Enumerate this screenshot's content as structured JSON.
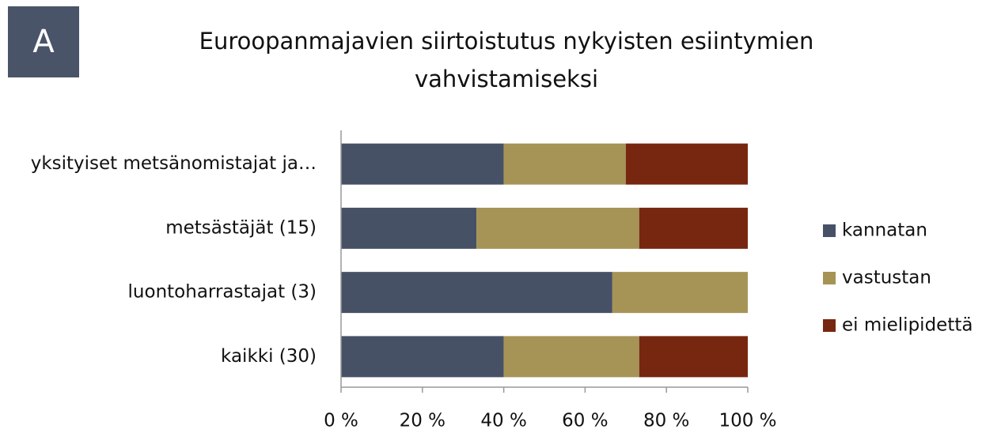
{
  "chart_data": {
    "type": "stacked_bar_horizontal",
    "panel_label": "A",
    "title": "Euroopanmajavien siirtoistutus nykyisten esiintymien vahvistamiseksi",
    "categories": [
      "yksityiset metsänomistajat ja…",
      "metsästäjät (15)",
      "luontoharrastajat (3)",
      "kaikki (30)"
    ],
    "series": [
      {
        "name": "kannatan",
        "color": "#475166",
        "values": [
          40,
          33.3,
          66.7,
          40
        ]
      },
      {
        "name": "vastustan",
        "color": "#a69356",
        "values": [
          30,
          40,
          33.3,
          33.3
        ]
      },
      {
        "name": "ei mielipidettä",
        "color": "#77270f",
        "values": [
          30,
          26.7,
          0,
          26.7
        ]
      }
    ],
    "xlim": [
      0,
      100
    ],
    "xticks": [
      {
        "value": 0,
        "label": "0 %"
      },
      {
        "value": 20,
        "label": "20 %"
      },
      {
        "value": 40,
        "label": "40 %"
      },
      {
        "value": 60,
        "label": "60 %"
      },
      {
        "value": 80,
        "label": "80 %"
      },
      {
        "value": 100,
        "label": "100 %"
      }
    ],
    "legend": "right"
  }
}
